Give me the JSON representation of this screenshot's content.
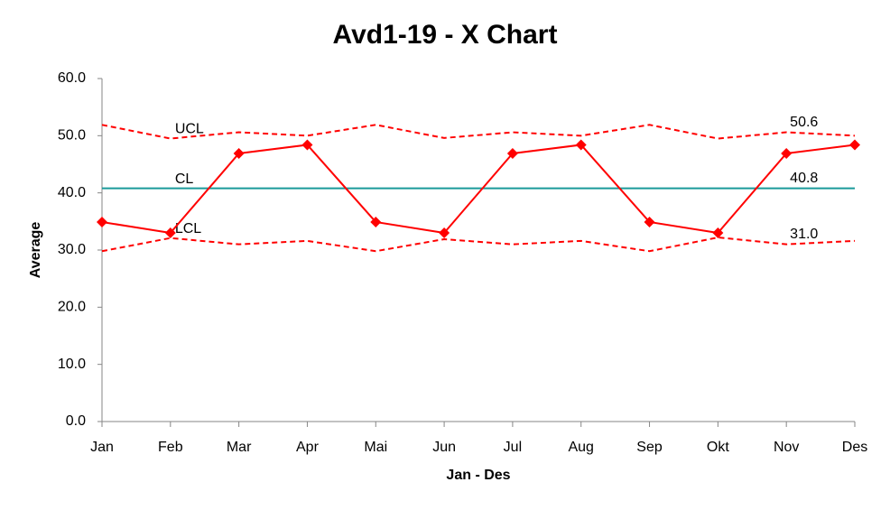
{
  "chart_data": {
    "type": "line",
    "title": "Avd1-19 - X Chart",
    "x_label": "Jan - Des",
    "y_label": "Average",
    "categories": [
      "Jan",
      "Feb",
      "Mar",
      "Apr",
      "Mai",
      "Jun",
      "Jul",
      "Aug",
      "Sep",
      "Okt",
      "Nov",
      "Des"
    ],
    "ylim": [
      0,
      60
    ],
    "yticks": [
      {
        "value": 0,
        "label": "0.0"
      },
      {
        "value": 10,
        "label": "10.0"
      },
      {
        "value": 20,
        "label": "20.0"
      },
      {
        "value": 30,
        "label": "30.0"
      },
      {
        "value": 40,
        "label": "40.0"
      },
      {
        "value": 50,
        "label": "50.0"
      },
      {
        "value": 60,
        "label": "60.0"
      }
    ],
    "grid": false,
    "series": [
      {
        "name": "UCL",
        "color": "#ff0000",
        "dashed": true,
        "markers": false,
        "values": [
          51.9,
          49.5,
          50.6,
          50.0,
          51.9,
          49.6,
          50.6,
          50.0,
          51.9,
          49.5,
          50.6,
          50.0
        ],
        "value_labels": [
          null,
          null,
          null,
          null,
          null,
          null,
          null,
          null,
          null,
          null,
          "50.6",
          null
        ]
      },
      {
        "name": "CL",
        "color": "#1a9a9a",
        "dashed": false,
        "markers": false,
        "values": [
          40.8,
          40.8,
          40.8,
          40.8,
          40.8,
          40.8,
          40.8,
          40.8,
          40.8,
          40.8,
          40.8,
          40.8
        ],
        "value_labels": [
          null,
          null,
          null,
          null,
          null,
          null,
          null,
          null,
          null,
          null,
          "40.8",
          null
        ]
      },
      {
        "name": "LCL",
        "color": "#ff0000",
        "dashed": true,
        "markers": false,
        "values": [
          29.8,
          32.1,
          31.0,
          31.6,
          29.8,
          31.9,
          31.0,
          31.6,
          29.8,
          32.2,
          31.0,
          31.6
        ],
        "value_labels": [
          null,
          null,
          null,
          null,
          null,
          null,
          null,
          null,
          null,
          null,
          "31.0",
          null
        ]
      },
      {
        "name": "Average",
        "color": "#ff0000",
        "dashed": false,
        "markers": true,
        "show_name": false,
        "values": [
          34.9,
          33.0,
          46.9,
          48.4,
          34.9,
          33.0,
          46.9,
          48.4,
          34.9,
          33.0,
          46.9,
          48.4
        ]
      }
    ]
  }
}
